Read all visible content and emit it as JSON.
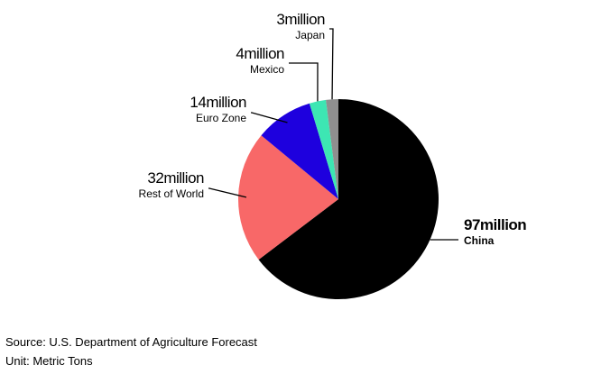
{
  "chart_data": {
    "type": "pie",
    "unit_suffix": "million",
    "slices": [
      {
        "label": "China",
        "value": 97,
        "value_label": "97million",
        "color": "#000000",
        "emphasis": true
      },
      {
        "label": "Rest of World",
        "value": 32,
        "value_label": "32million",
        "color": "#f86868",
        "emphasis": false
      },
      {
        "label": "Euro Zone",
        "value": 14,
        "value_label": "14million",
        "color": "#1e00de",
        "emphasis": false
      },
      {
        "label": "Mexico",
        "value": 4,
        "value_label": "4million",
        "color": "#3de6b3",
        "emphasis": false
      },
      {
        "label": "Japan",
        "value": 3,
        "value_label": "3million",
        "color": "#8f8f8f",
        "emphasis": false
      }
    ]
  },
  "footer": {
    "source": "Source: U.S. Department of Agriculture Forecast",
    "unit": "Unit: Metric Tons"
  }
}
